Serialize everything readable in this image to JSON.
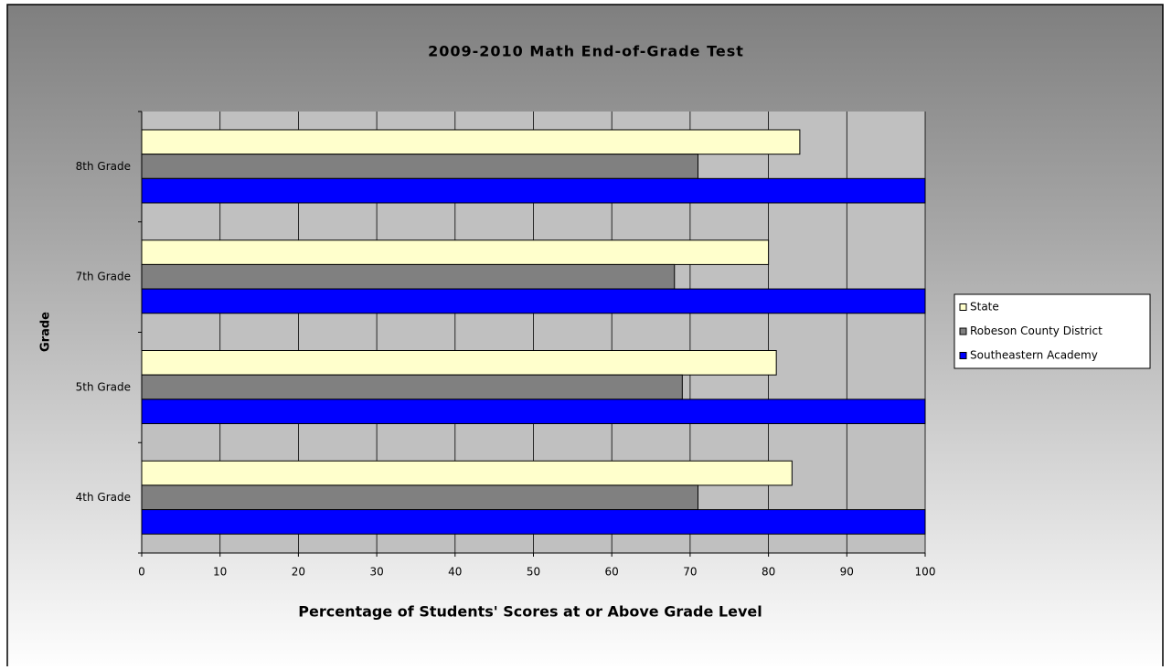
{
  "chart_data": {
    "type": "bar",
    "orientation": "horizontal",
    "title": "2009-2010 Math End-of-Grade Test",
    "x_label": "Percentage of Students' Scores at or Above Grade Level",
    "y_label": "Grade",
    "categories": [
      "4th Grade",
      "5th Grade",
      "7th Grade",
      "8th Grade"
    ],
    "series": [
      {
        "name": "State",
        "color": "#ffffcc",
        "values": [
          83,
          81,
          80,
          84
        ]
      },
      {
        "name": "Robeson County District",
        "color": "#808080",
        "values": [
          71,
          69,
          68,
          71
        ]
      },
      {
        "name": "Southeastern Academy",
        "color": "#0000ff",
        "values": [
          100,
          100,
          100,
          100
        ]
      }
    ],
    "xlim": [
      0,
      100
    ],
    "xticks": [
      0,
      10,
      20,
      30,
      40,
      50,
      60,
      70,
      80,
      90,
      100
    ],
    "grid": true,
    "legend": "right"
  }
}
